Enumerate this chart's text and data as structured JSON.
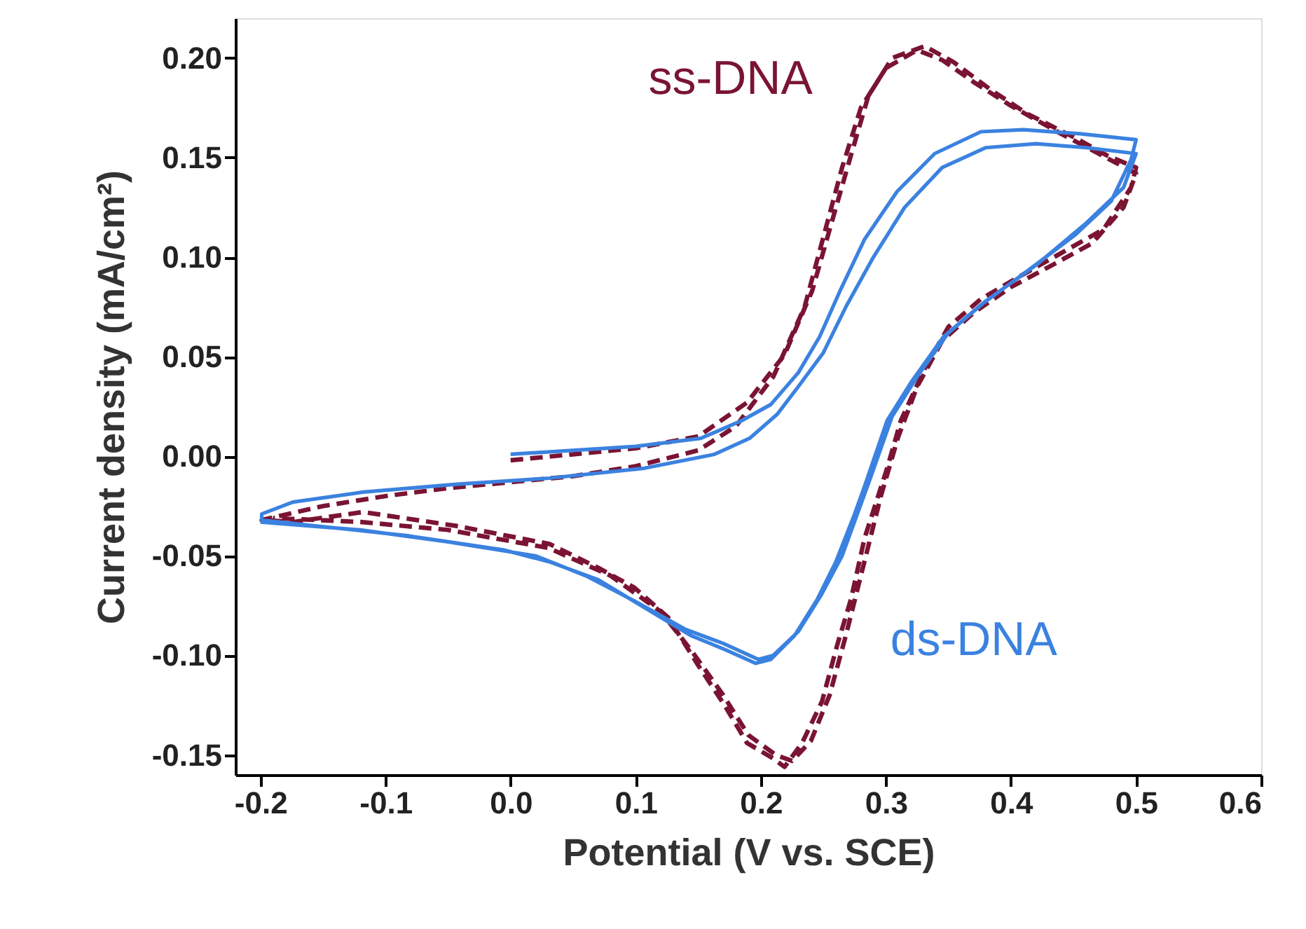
{
  "chart_data": {
    "type": "line",
    "xlabel": "Potential (V vs. SCE)",
    "ylabel": "Current density (mA/cm²)",
    "xlim": [
      -0.22,
      0.6
    ],
    "ylim": [
      -0.16,
      0.22
    ],
    "xticks": [
      -0.2,
      -0.1,
      {
        "value": 0,
        "label": "0.0"
      },
      0.1,
      0.2,
      0.3,
      0.4,
      0.5,
      0.6
    ],
    "yticks": [
      {
        "value": -0.15,
        "label": "-0.15"
      },
      {
        "value": -0.1,
        "label": "-0.10"
      },
      {
        "value": -0.05,
        "label": "-0.05"
      },
      {
        "value": 0,
        "label": "0.00"
      },
      {
        "value": 0.05,
        "label": "0.05"
      },
      {
        "value": 0.1,
        "label": "0.10"
      },
      {
        "value": 0.15,
        "label": "0.15"
      },
      {
        "value": 0.2,
        "label": "0.20"
      }
    ],
    "grid": false,
    "legend": false,
    "marker": "none",
    "series": [
      {
        "name": "ss-DNA",
        "color": "#7a1432",
        "line_style": "dashed",
        "x": [
          0.0,
          0.1,
          0.15,
          0.189,
          0.219,
          0.241,
          0.256,
          0.272,
          0.286,
          0.305,
          0.331,
          0.354,
          0.384,
          0.413,
          0.451,
          0.477,
          0.5,
          0.496,
          0.474,
          0.44,
          0.406,
          0.376,
          0.35,
          0.331,
          0.312,
          0.301,
          0.283,
          0.272,
          0.261,
          0.249,
          0.233,
          0.219,
          0.208,
          0.189,
          0.171,
          0.15,
          0.126,
          0.099,
          0.07,
          0.031,
          -0.043,
          -0.118,
          -0.174,
          -0.199,
          -0.15,
          -0.1,
          -0.05,
          0.0,
          0.05,
          0.1,
          0.15,
          0.18,
          0.21,
          0.235,
          0.25,
          0.265,
          0.28,
          0.3,
          0.325,
          0.345,
          0.37,
          0.4,
          0.44,
          0.47,
          0.5,
          0.49,
          0.465,
          0.43,
          0.4,
          0.37,
          0.345,
          0.325,
          0.31,
          0.296,
          0.28,
          0.268,
          0.255,
          0.24,
          0.225,
          0.212,
          0.19,
          0.17,
          0.145,
          0.12,
          0.08,
          0.03,
          -0.05,
          -0.12,
          -0.19
        ],
        "values": [
          -0.002,
          0.004,
          0.01,
          0.027,
          0.051,
          0.083,
          0.116,
          0.151,
          0.181,
          0.2,
          0.206,
          0.198,
          0.184,
          0.172,
          0.16,
          0.151,
          0.145,
          0.135,
          0.114,
          0.102,
          0.09,
          0.079,
          0.065,
          0.044,
          0.018,
          -0.006,
          -0.041,
          -0.072,
          -0.095,
          -0.123,
          -0.144,
          -0.156,
          -0.151,
          -0.144,
          -0.125,
          -0.105,
          -0.081,
          -0.066,
          -0.056,
          -0.044,
          -0.035,
          -0.028,
          -0.033,
          -0.032,
          -0.025,
          -0.02,
          -0.016,
          -0.013,
          -0.01,
          -0.005,
          0.003,
          0.015,
          0.04,
          0.075,
          0.11,
          0.145,
          0.175,
          0.195,
          0.204,
          0.199,
          0.188,
          0.176,
          0.162,
          0.152,
          0.142,
          0.125,
          0.107,
          0.095,
          0.085,
          0.072,
          0.058,
          0.035,
          0.01,
          -0.02,
          -0.06,
          -0.09,
          -0.12,
          -0.143,
          -0.153,
          -0.15,
          -0.14,
          -0.12,
          -0.098,
          -0.078,
          -0.06,
          -0.046,
          -0.037,
          -0.033,
          -0.031
        ]
      },
      {
        "name": "ds-DNA",
        "color": "#3b82e0",
        "line_style": "solid",
        "x": [
          0.0,
          0.1,
          0.152,
          0.185,
          0.208,
          0.23,
          0.247,
          0.264,
          0.283,
          0.309,
          0.339,
          0.376,
          0.41,
          0.455,
          0.5,
          0.496,
          0.48,
          0.451,
          0.413,
          0.376,
          0.346,
          0.32,
          0.301,
          0.283,
          0.275,
          0.26,
          0.245,
          0.227,
          0.208,
          0.196,
          0.171,
          0.144,
          0.107,
          0.07,
          0.031,
          -0.006,
          -0.081,
          -0.155,
          -0.199,
          -0.199,
          -0.174,
          -0.118,
          -0.043,
          0.031,
          0.107,
          0.163,
          0.191,
          0.213,
          0.23,
          0.25,
          0.268,
          0.29,
          0.315,
          0.345,
          0.38,
          0.42,
          0.46,
          0.5,
          0.49,
          0.46,
          0.42,
          0.38,
          0.35,
          0.325,
          0.305,
          0.287,
          0.265,
          0.248,
          0.23,
          0.21,
          0.198,
          0.17,
          0.14,
          0.1,
          0.06,
          0.02,
          -0.05,
          -0.12,
          -0.2
        ],
        "values": [
          0.001,
          0.005,
          0.009,
          0.018,
          0.026,
          0.042,
          0.06,
          0.084,
          0.109,
          0.133,
          0.152,
          0.163,
          0.164,
          0.162,
          0.159,
          0.149,
          0.128,
          0.111,
          0.093,
          0.076,
          0.06,
          0.037,
          0.018,
          -0.015,
          -0.029,
          -0.053,
          -0.072,
          -0.09,
          -0.102,
          -0.104,
          -0.097,
          -0.09,
          -0.076,
          -0.062,
          -0.053,
          -0.047,
          -0.04,
          -0.035,
          -0.032,
          -0.029,
          -0.023,
          -0.018,
          -0.014,
          -0.011,
          -0.006,
          0.001,
          0.009,
          0.021,
          0.035,
          0.052,
          0.075,
          0.1,
          0.125,
          0.145,
          0.155,
          0.157,
          0.155,
          0.152,
          0.135,
          0.117,
          0.096,
          0.078,
          0.062,
          0.04,
          0.02,
          -0.012,
          -0.05,
          -0.07,
          -0.088,
          -0.1,
          -0.102,
          -0.094,
          -0.087,
          -0.073,
          -0.06,
          -0.05,
          -0.043,
          -0.037,
          -0.033
        ]
      }
    ]
  }
}
